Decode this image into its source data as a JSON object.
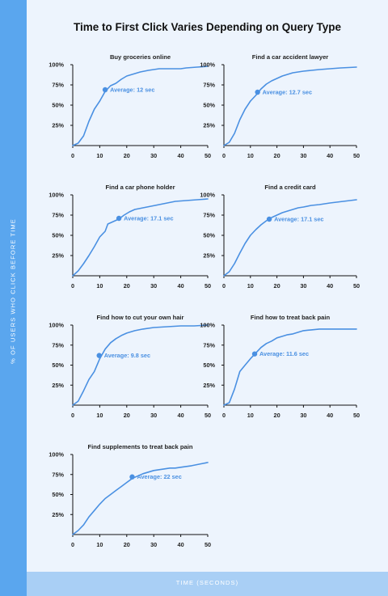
{
  "title": "Time to First Click Varies Depending on Query Type",
  "y_axis_label": "% OF USERS WHO CLICK BEFORE TIME",
  "x_axis_label": "TIME (SECONDS)",
  "colors": {
    "line": "#4a90e2",
    "left_band": "#5aa6ee",
    "bottom_band": "#a9cff5",
    "background": "#edf4fd",
    "annotation": "#4a90e2"
  },
  "chart_data": [
    {
      "type": "line",
      "title": "Buy groceries online",
      "xlim": [
        0,
        50
      ],
      "ylim": [
        0,
        100
      ],
      "xticks": [
        0,
        10,
        20,
        30,
        40,
        50
      ],
      "yticks": [
        25,
        50,
        75,
        100
      ],
      "ytick_labels": [
        "25%",
        "50%",
        "75%",
        "100%"
      ],
      "x": [
        0,
        2,
        4,
        6,
        8,
        10,
        12,
        14,
        16,
        18,
        20,
        22,
        25,
        28,
        32,
        36,
        40,
        42,
        46,
        50
      ],
      "y": [
        0,
        3,
        12,
        30,
        45,
        55,
        67,
        74,
        77,
        82,
        86,
        88,
        91,
        93,
        95,
        95,
        95,
        96,
        97,
        98
      ],
      "average": {
        "x": 12,
        "y": 69,
        "label": "Average: 12 sec"
      }
    },
    {
      "type": "line",
      "title": "Find a car accident lawyer",
      "xlim": [
        0,
        50
      ],
      "ylim": [
        0,
        100
      ],
      "xticks": [
        0,
        10,
        20,
        30,
        40,
        50
      ],
      "yticks": [
        25,
        50,
        75,
        100
      ],
      "ytick_labels": [
        "25%",
        "50%",
        "75%",
        "100%"
      ],
      "x": [
        0,
        2,
        4,
        6,
        8,
        10,
        12,
        14,
        16,
        18,
        20,
        22,
        24,
        26,
        28,
        30,
        33,
        36,
        40,
        44,
        50
      ],
      "y": [
        0,
        4,
        15,
        32,
        45,
        55,
        62,
        70,
        76,
        80,
        83,
        86,
        88,
        90,
        91,
        92,
        93,
        94,
        95,
        96,
        97
      ],
      "average": {
        "x": 12.7,
        "y": 66,
        "label": "Average: 12.7 sec"
      }
    },
    {
      "type": "line",
      "title": "Find a car phone holder",
      "xlim": [
        0,
        50
      ],
      "ylim": [
        0,
        100
      ],
      "xticks": [
        0,
        10,
        20,
        30,
        40,
        50
      ],
      "yticks": [
        25,
        50,
        75,
        100
      ],
      "ytick_labels": [
        "25%",
        "50%",
        "75%",
        "100%"
      ],
      "x": [
        0,
        2,
        4,
        6,
        8,
        10,
        12,
        13,
        15,
        17,
        19,
        21,
        23,
        26,
        29,
        32,
        35,
        38,
        42,
        46,
        50
      ],
      "y": [
        0,
        6,
        15,
        25,
        36,
        48,
        55,
        64,
        67,
        70,
        75,
        79,
        82,
        84,
        86,
        88,
        90,
        92,
        93,
        94,
        95
      ],
      "average": {
        "x": 17.1,
        "y": 71,
        "label": "Average: 17.1 sec"
      }
    },
    {
      "type": "line",
      "title": "Find a credit card",
      "xlim": [
        0,
        50
      ],
      "ylim": [
        0,
        100
      ],
      "xticks": [
        0,
        10,
        20,
        30,
        40,
        50
      ],
      "yticks": [
        25,
        50,
        75,
        100
      ],
      "ytick_labels": [
        "25%",
        "50%",
        "75%",
        "100%"
      ],
      "x": [
        0,
        2,
        4,
        6,
        8,
        10,
        12,
        14,
        16,
        18,
        20,
        22,
        24,
        26,
        28,
        30,
        33,
        36,
        40,
        45,
        50
      ],
      "y": [
        0,
        5,
        15,
        28,
        40,
        50,
        57,
        63,
        68,
        72,
        75,
        78,
        80,
        82,
        84,
        85,
        87,
        88,
        90,
        92,
        94
      ],
      "average": {
        "x": 17.1,
        "y": 70,
        "label": "Average: 17.1 sec"
      }
    },
    {
      "type": "line",
      "title": "Find how to cut your own hair",
      "xlim": [
        0,
        50
      ],
      "ylim": [
        0,
        100
      ],
      "xticks": [
        0,
        10,
        20,
        30,
        40,
        50
      ],
      "yticks": [
        25,
        50,
        75,
        100
      ],
      "ytick_labels": [
        "25%",
        "50%",
        "75%",
        "100%"
      ],
      "x": [
        0,
        2,
        4,
        6,
        8,
        10,
        12,
        14,
        16,
        18,
        20,
        23,
        26,
        30,
        35,
        40,
        45,
        50
      ],
      "y": [
        0,
        5,
        18,
        32,
        42,
        58,
        70,
        78,
        83,
        87,
        90,
        93,
        95,
        97,
        98,
        99,
        99,
        100
      ],
      "average": {
        "x": 9.8,
        "y": 62,
        "label": "Average: 9.8 sec"
      }
    },
    {
      "type": "line",
      "title": "Find how to treat back pain",
      "xlim": [
        0,
        50
      ],
      "ylim": [
        0,
        100
      ],
      "xticks": [
        0,
        10,
        20,
        30,
        40,
        50
      ],
      "yticks": [
        25,
        50,
        75,
        100
      ],
      "ytick_labels": [
        "25%",
        "50%",
        "75%",
        "100%"
      ],
      "x": [
        0,
        2,
        4,
        6,
        8,
        10,
        12,
        14,
        16,
        18,
        20,
        22,
        24,
        26,
        28,
        30,
        33,
        36,
        40,
        45,
        50
      ],
      "y": [
        0,
        3,
        20,
        42,
        50,
        58,
        65,
        72,
        77,
        80,
        84,
        86,
        88,
        89,
        91,
        93,
        94,
        95,
        95,
        95,
        95
      ],
      "average": {
        "x": 11.6,
        "y": 64,
        "label": "Average: 11.6 sec"
      }
    },
    {
      "type": "line",
      "title": "Find supplements to treat back pain",
      "xlim": [
        0,
        50
      ],
      "ylim": [
        0,
        100
      ],
      "xticks": [
        0,
        10,
        20,
        30,
        40,
        50
      ],
      "yticks": [
        25,
        50,
        75,
        100
      ],
      "ytick_labels": [
        "25%",
        "50%",
        "75%",
        "100%"
      ],
      "x": [
        0,
        2,
        4,
        6,
        8,
        10,
        12,
        14,
        16,
        18,
        20,
        22,
        24,
        26,
        28,
        30,
        32,
        34,
        36,
        38,
        40,
        44,
        47,
        50
      ],
      "y": [
        0,
        5,
        12,
        22,
        30,
        38,
        45,
        50,
        55,
        60,
        65,
        70,
        73,
        76,
        78,
        80,
        81,
        82,
        83,
        83,
        84,
        86,
        88,
        90
      ],
      "average": {
        "x": 22,
        "y": 72,
        "label": "Average: 22 sec"
      }
    }
  ]
}
